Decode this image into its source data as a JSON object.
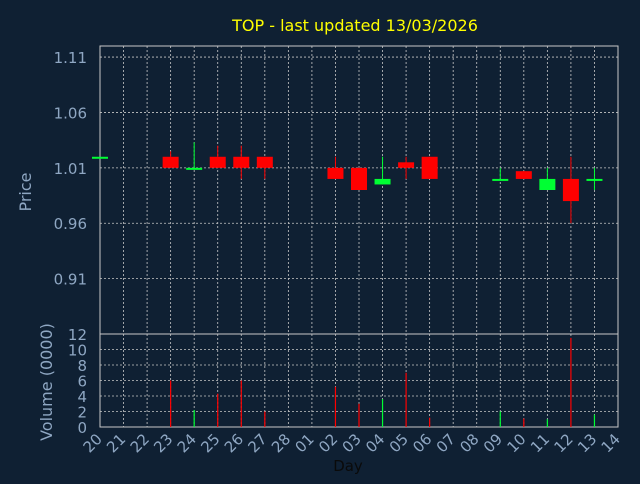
{
  "colors": {
    "background": "#0f2033",
    "title": "#ffff00",
    "axis_text": "#8fa7c3",
    "grid": "#c8c8c8",
    "up": "#00ff33",
    "down": "#ff0000"
  },
  "chart_data": {
    "type": "candlestick",
    "title": "TOP - last updated 13/03/2026",
    "xlabel": "Day",
    "grid": true,
    "days": [
      "20",
      "21",
      "22",
      "23",
      "24",
      "25",
      "26",
      "27",
      "28",
      "01",
      "02",
      "03",
      "04",
      "05",
      "06",
      "07",
      "08",
      "09",
      "10",
      "11",
      "12",
      "13",
      "14"
    ],
    "price_panel": {
      "ylabel": "Price",
      "yticks": [
        "0.91",
        "0.96",
        "1.01",
        "1.06",
        "1.11"
      ],
      "ylim": [
        0.86,
        1.12
      ],
      "candles": [
        {
          "day": "20",
          "open": 1.02,
          "high": 1.02,
          "low": 1.02,
          "close": 1.02
        },
        {
          "day": "23",
          "open": 1.02,
          "high": 1.025,
          "low": 1.01,
          "close": 1.01
        },
        {
          "day": "24",
          "open": 1.01,
          "high": 1.033,
          "low": 1.01,
          "close": 1.01
        },
        {
          "day": "25",
          "open": 1.02,
          "high": 1.03,
          "low": 1.01,
          "close": 1.01
        },
        {
          "day": "26",
          "open": 1.02,
          "high": 1.03,
          "low": 1.0,
          "close": 1.01
        },
        {
          "day": "27",
          "open": 1.02,
          "high": 1.02,
          "low": 1.0,
          "close": 1.01
        },
        {
          "day": "02",
          "open": 1.01,
          "high": 1.02,
          "low": 1.0,
          "close": 1.0
        },
        {
          "day": "03",
          "open": 1.01,
          "high": 1.01,
          "low": 0.99,
          "close": 0.99
        },
        {
          "day": "04",
          "open": 0.995,
          "high": 1.02,
          "low": 0.995,
          "close": 1.0
        },
        {
          "day": "05",
          "open": 1.015,
          "high": 1.02,
          "low": 1.0,
          "close": 1.01
        },
        {
          "day": "06",
          "open": 1.02,
          "high": 1.02,
          "low": 1.0,
          "close": 1.0
        },
        {
          "day": "09",
          "open": 1.0,
          "high": 1.01,
          "low": 1.0,
          "close": 1.0
        },
        {
          "day": "10",
          "open": 1.007,
          "high": 1.007,
          "low": 1.0,
          "close": 1.0
        },
        {
          "day": "11",
          "open": 0.99,
          "high": 1.01,
          "low": 0.99,
          "close": 1.0
        },
        {
          "day": "12",
          "open": 1.0,
          "high": 1.02,
          "low": 0.96,
          "close": 0.98
        },
        {
          "day": "13",
          "open": 1.0,
          "high": 1.01,
          "low": 0.99,
          "close": 1.0
        }
      ]
    },
    "volume_panel": {
      "ylabel": "Volume (0000)",
      "yticks": [
        "0",
        "2",
        "4",
        "6",
        "8",
        "10",
        "12"
      ],
      "ylim": [
        0,
        12
      ],
      "bars": [
        {
          "day": "23",
          "value": 6.0,
          "dir": "down"
        },
        {
          "day": "24",
          "value": 2.2,
          "dir": "up"
        },
        {
          "day": "25",
          "value": 4.3,
          "dir": "down"
        },
        {
          "day": "26",
          "value": 6.0,
          "dir": "down"
        },
        {
          "day": "27",
          "value": 2.0,
          "dir": "down"
        },
        {
          "day": "02",
          "value": 5.2,
          "dir": "down"
        },
        {
          "day": "03",
          "value": 3.0,
          "dir": "down"
        },
        {
          "day": "04",
          "value": 3.6,
          "dir": "up"
        },
        {
          "day": "05",
          "value": 7.0,
          "dir": "down"
        },
        {
          "day": "06",
          "value": 1.2,
          "dir": "down"
        },
        {
          "day": "09",
          "value": 2.0,
          "dir": "up"
        },
        {
          "day": "10",
          "value": 1.1,
          "dir": "down"
        },
        {
          "day": "11",
          "value": 1.0,
          "dir": "up"
        },
        {
          "day": "12",
          "value": 11.5,
          "dir": "down"
        },
        {
          "day": "13",
          "value": 1.6,
          "dir": "up"
        }
      ]
    }
  }
}
